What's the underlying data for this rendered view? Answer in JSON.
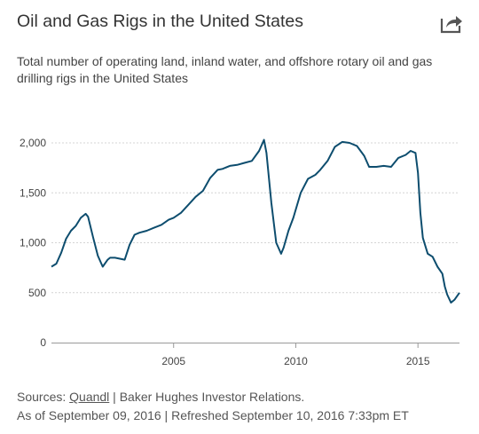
{
  "header": {
    "title": "Oil and Gas Rigs in the United States",
    "subtitle": "Total number of operating land, inland water, and offshore rotary oil and gas drilling rigs in the United States",
    "share_icon": "share-arrow-icon"
  },
  "footer": {
    "sources_prefix": "Sources: ",
    "source_link": "Quandl",
    "sources_rest": " | Baker Hughes Investor Relations.",
    "as_of": "As of September 09, 2016 | Refreshed September 10, 2016 7:33pm ET"
  },
  "colors": {
    "line": "#0d4d6e",
    "grid": "#d4d4d4",
    "axis": "#999999"
  },
  "chart_data": {
    "type": "line",
    "title": "Oil and Gas Rigs in the United States",
    "xlabel": "",
    "ylabel": "",
    "xlim": [
      2000.0,
      2016.7
    ],
    "ylim": [
      0,
      2000
    ],
    "y_ticks": [
      0,
      500,
      1000,
      1500,
      2000
    ],
    "y_tick_labels": [
      "0",
      "500",
      "1,000",
      "1,500",
      "2,000"
    ],
    "x_ticks": [
      2005,
      2010,
      2015
    ],
    "x_tick_labels": [
      "2005",
      "2010",
      "2015"
    ],
    "grid": "horizontal-dashed",
    "legend": "none",
    "series": [
      {
        "x": [
          2000.0,
          2000.2,
          2000.4,
          2000.6,
          2000.8,
          2001.0,
          2001.2,
          2001.4,
          2001.5,
          2001.7,
          2001.9,
          2002.1,
          2002.3,
          2002.4,
          2002.6,
          2002.8,
          2003.0,
          2003.2,
          2003.4,
          2003.6,
          2003.9,
          2004.2,
          2004.5,
          2004.8,
          2005.0,
          2005.3,
          2005.6,
          2005.9,
          2006.2,
          2006.5,
          2006.8,
          2007.0,
          2007.3,
          2007.6,
          2007.9,
          2008.2,
          2008.5,
          2008.7,
          2008.8,
          2009.0,
          2009.2,
          2009.4,
          2009.5,
          2009.7,
          2009.9,
          2010.2,
          2010.5,
          2010.8,
          2011.0,
          2011.3,
          2011.6,
          2011.9,
          2012.2,
          2012.5,
          2012.8,
          2013.0,
          2013.3,
          2013.6,
          2013.9,
          2014.2,
          2014.5,
          2014.7,
          2014.9,
          2015.0,
          2015.1,
          2015.2,
          2015.4,
          2015.6,
          2015.8,
          2016.0,
          2016.1,
          2016.2,
          2016.35,
          2016.5,
          2016.7
        ],
        "values": [
          760,
          790,
          900,
          1040,
          1120,
          1170,
          1250,
          1290,
          1260,
          1060,
          870,
          760,
          830,
          850,
          850,
          840,
          830,
          980,
          1080,
          1100,
          1120,
          1150,
          1180,
          1230,
          1250,
          1300,
          1380,
          1460,
          1520,
          1650,
          1730,
          1740,
          1770,
          1780,
          1800,
          1820,
          1920,
          2030,
          1900,
          1400,
          1000,
          890,
          950,
          1120,
          1250,
          1500,
          1640,
          1680,
          1730,
          1820,
          1960,
          2010,
          2000,
          1970,
          1870,
          1760,
          1760,
          1770,
          1760,
          1850,
          1880,
          1920,
          1900,
          1700,
          1300,
          1050,
          890,
          860,
          760,
          690,
          560,
          480,
          400,
          430,
          500
        ]
      }
    ]
  }
}
